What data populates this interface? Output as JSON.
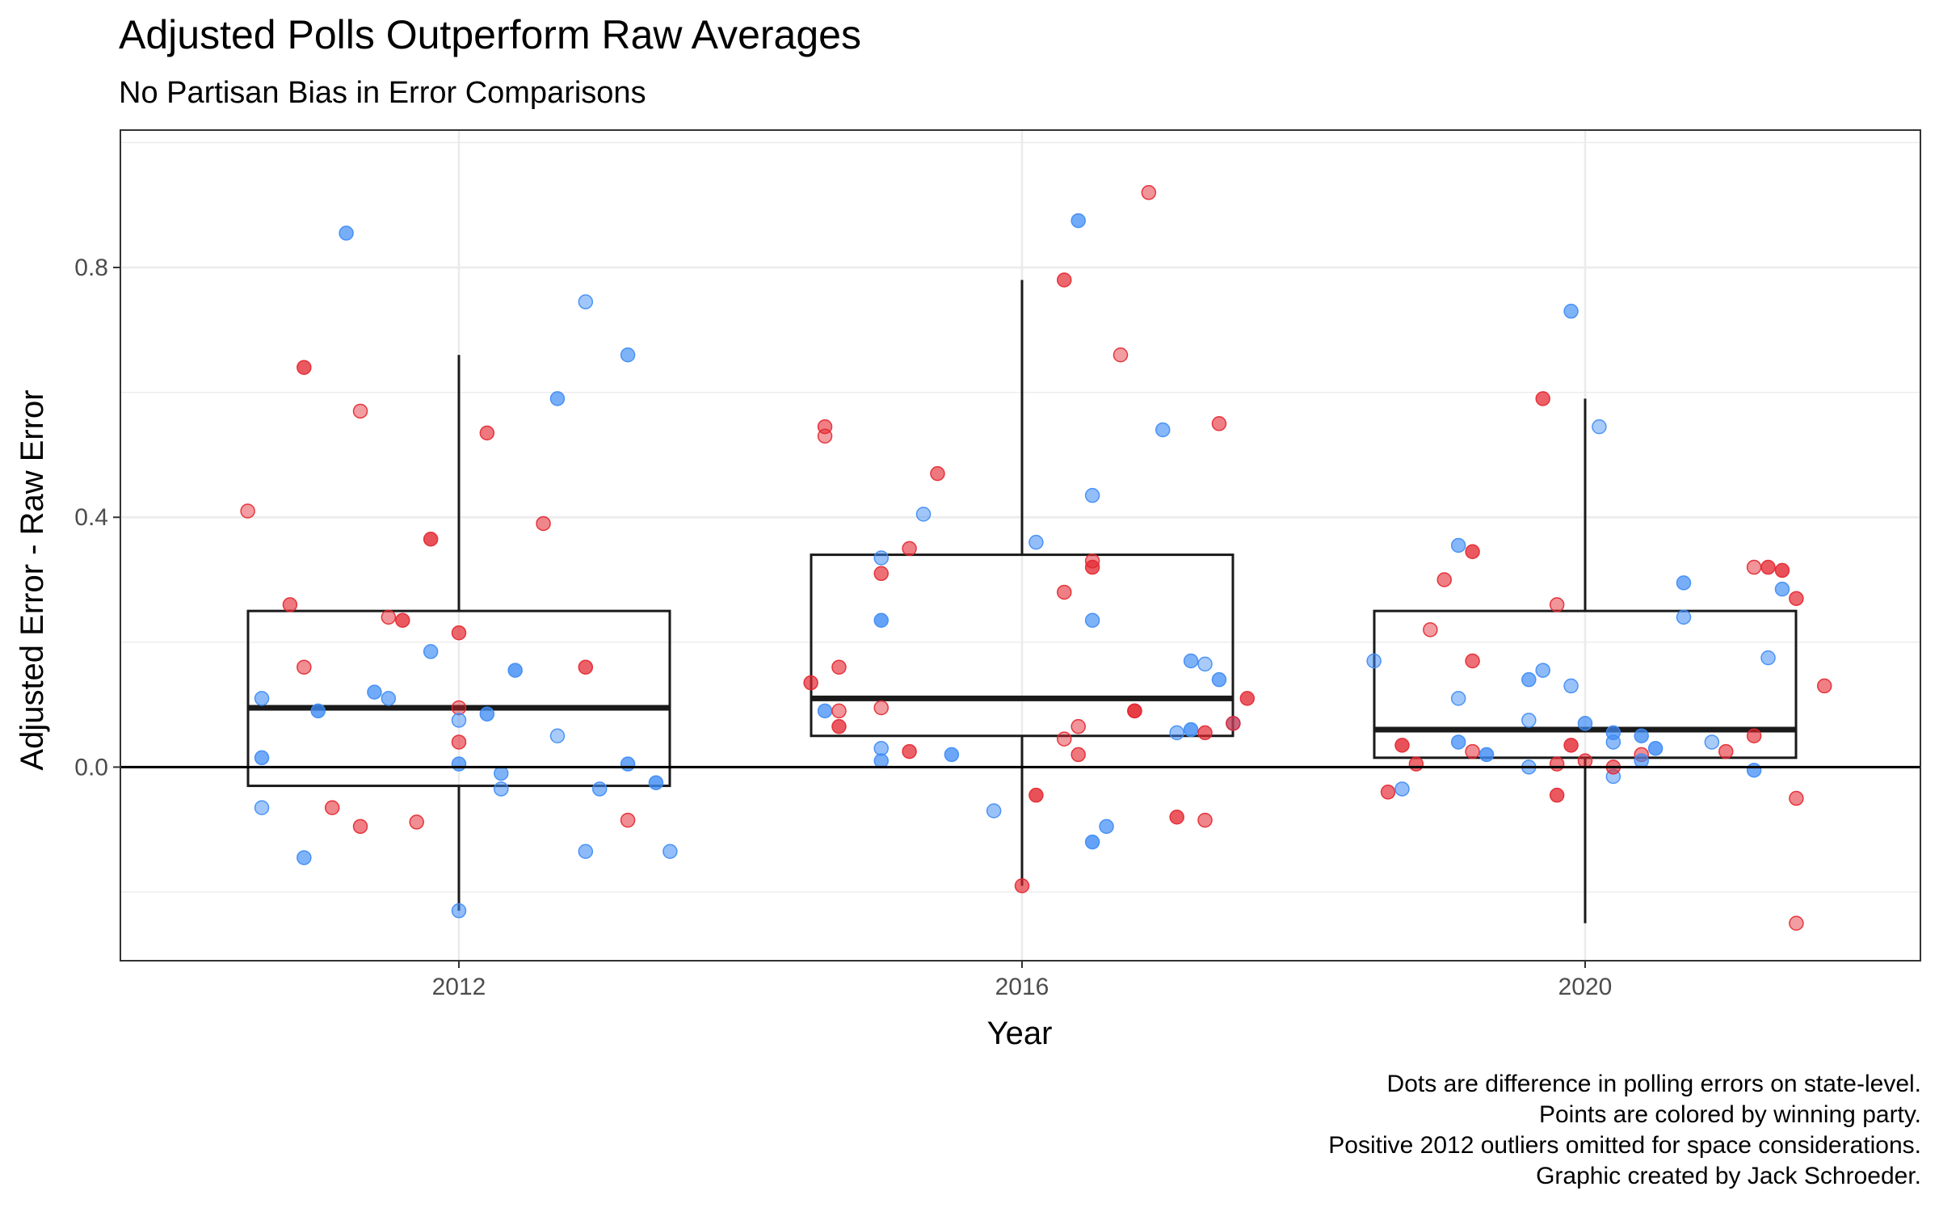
{
  "chart_data": {
    "type": "boxplot",
    "title": "Adjusted Polls Outperform Raw Averages",
    "subtitle": "No Partisan Bias in Error Comparisons",
    "xlabel": "Year",
    "ylabel": "Adjusted Error - Raw Error",
    "categories": [
      "2012",
      "2016",
      "2020"
    ],
    "x_ticks": [
      "2012",
      "2016",
      "2020"
    ],
    "y_ticks": [
      0.0,
      0.4,
      0.8
    ],
    "y_tick_labels": [
      "0.0",
      "0.4",
      "0.8"
    ],
    "ylim": [
      -0.31,
      1.02
    ],
    "grid": true,
    "reference_line_y": 0,
    "colors": {
      "dem": "#3d8bf5",
      "rep": "#e3262f",
      "box": "#1a1a1a",
      "reference": "#000000",
      "grid": "#ebebeb"
    },
    "boxes": [
      {
        "category": "2012",
        "lower_whisker": -0.23,
        "q1": -0.03,
        "median": 0.095,
        "q3": 0.25,
        "upper_whisker": 0.66
      },
      {
        "category": "2016",
        "lower_whisker": -0.19,
        "q1": 0.05,
        "median": 0.11,
        "q3": 0.34,
        "upper_whisker": 0.78
      },
      {
        "category": "2020",
        "lower_whisker": -0.25,
        "q1": 0.015,
        "median": 0.06,
        "q3": 0.25,
        "upper_whisker": 0.59
      }
    ],
    "points": [
      {
        "x": 2010.5,
        "y": 0.41,
        "party": "rep"
      },
      {
        "x": 2010.6,
        "y": 0.11,
        "party": "dem"
      },
      {
        "x": 2010.6,
        "y": 0.015,
        "party": "dem"
      },
      {
        "x": 2010.6,
        "y": -0.065,
        "party": "dem"
      },
      {
        "x": 2010.8,
        "y": 0.26,
        "party": "rep"
      },
      {
        "x": 2010.9,
        "y": 0.64,
        "party": "rep"
      },
      {
        "x": 2010.9,
        "y": 0.16,
        "party": "rep"
      },
      {
        "x": 2010.9,
        "y": -0.145,
        "party": "dem"
      },
      {
        "x": 2011.0,
        "y": 0.09,
        "party": "dem"
      },
      {
        "x": 2011.1,
        "y": -0.065,
        "party": "rep"
      },
      {
        "x": 2011.2,
        "y": 0.855,
        "party": "dem"
      },
      {
        "x": 2011.3,
        "y": 0.57,
        "party": "rep"
      },
      {
        "x": 2011.3,
        "y": -0.095,
        "party": "rep"
      },
      {
        "x": 2011.4,
        "y": 0.12,
        "party": "dem"
      },
      {
        "x": 2011.5,
        "y": 0.24,
        "party": "rep"
      },
      {
        "x": 2011.5,
        "y": 0.11,
        "party": "dem"
      },
      {
        "x": 2011.6,
        "y": 0.235,
        "party": "rep"
      },
      {
        "x": 2011.7,
        "y": -0.088,
        "party": "rep"
      },
      {
        "x": 2011.8,
        "y": 0.185,
        "party": "dem"
      },
      {
        "x": 2011.8,
        "y": 0.365,
        "party": "rep"
      },
      {
        "x": 2012.0,
        "y": -0.23,
        "party": "dem"
      },
      {
        "x": 2012.0,
        "y": 0.215,
        "party": "rep"
      },
      {
        "x": 2012.0,
        "y": 0.095,
        "party": "rep"
      },
      {
        "x": 2012.0,
        "y": 0.04,
        "party": "rep"
      },
      {
        "x": 2012.0,
        "y": 0.005,
        "party": "dem"
      },
      {
        "x": 2012.0,
        "y": 0.075,
        "party": "dem"
      },
      {
        "x": 2012.2,
        "y": 0.535,
        "party": "rep"
      },
      {
        "x": 2012.2,
        "y": 0.085,
        "party": "dem"
      },
      {
        "x": 2012.3,
        "y": -0.035,
        "party": "dem"
      },
      {
        "x": 2012.3,
        "y": -0.01,
        "party": "dem"
      },
      {
        "x": 2012.4,
        "y": 0.155,
        "party": "dem"
      },
      {
        "x": 2012.6,
        "y": 0.39,
        "party": "rep"
      },
      {
        "x": 2012.7,
        "y": 0.59,
        "party": "dem"
      },
      {
        "x": 2012.7,
        "y": 0.05,
        "party": "dem"
      },
      {
        "x": 2012.9,
        "y": -0.135,
        "party": "dem"
      },
      {
        "x": 2012.9,
        "y": 0.16,
        "party": "rep"
      },
      {
        "x": 2012.9,
        "y": 0.745,
        "party": "dem"
      },
      {
        "x": 2013.0,
        "y": -0.035,
        "party": "dem"
      },
      {
        "x": 2013.2,
        "y": 0.005,
        "party": "dem"
      },
      {
        "x": 2013.2,
        "y": -0.085,
        "party": "rep"
      },
      {
        "x": 2013.2,
        "y": 0.66,
        "party": "dem"
      },
      {
        "x": 2013.4,
        "y": -0.025,
        "party": "dem"
      },
      {
        "x": 2013.5,
        "y": -0.135,
        "party": "dem"
      },
      {
        "x": 2014.5,
        "y": 0.135,
        "party": "rep"
      },
      {
        "x": 2014.6,
        "y": 0.53,
        "party": "rep"
      },
      {
        "x": 2014.6,
        "y": 0.545,
        "party": "rep"
      },
      {
        "x": 2014.6,
        "y": 0.09,
        "party": "dem"
      },
      {
        "x": 2014.7,
        "y": 0.09,
        "party": "rep"
      },
      {
        "x": 2014.7,
        "y": 0.16,
        "party": "rep"
      },
      {
        "x": 2014.7,
        "y": 0.065,
        "party": "rep"
      },
      {
        "x": 2015.0,
        "y": 0.335,
        "party": "dem"
      },
      {
        "x": 2015.0,
        "y": 0.31,
        "party": "rep"
      },
      {
        "x": 2015.0,
        "y": 0.235,
        "party": "dem"
      },
      {
        "x": 2015.0,
        "y": 0.03,
        "party": "dem"
      },
      {
        "x": 2015.0,
        "y": 0.01,
        "party": "dem"
      },
      {
        "x": 2015.0,
        "y": 0.095,
        "party": "rep"
      },
      {
        "x": 2015.2,
        "y": 0.35,
        "party": "rep"
      },
      {
        "x": 2015.2,
        "y": 0.025,
        "party": "rep"
      },
      {
        "x": 2015.3,
        "y": 0.405,
        "party": "dem"
      },
      {
        "x": 2015.4,
        "y": 0.47,
        "party": "rep"
      },
      {
        "x": 2015.5,
        "y": 0.02,
        "party": "dem"
      },
      {
        "x": 2015.8,
        "y": -0.07,
        "party": "dem"
      },
      {
        "x": 2016.0,
        "y": -0.19,
        "party": "rep"
      },
      {
        "x": 2016.1,
        "y": -0.045,
        "party": "rep"
      },
      {
        "x": 2016.1,
        "y": 0.36,
        "party": "dem"
      },
      {
        "x": 2016.3,
        "y": 0.78,
        "party": "rep"
      },
      {
        "x": 2016.3,
        "y": 0.045,
        "party": "rep"
      },
      {
        "x": 2016.3,
        "y": 0.28,
        "party": "rep"
      },
      {
        "x": 2016.4,
        "y": 0.875,
        "party": "dem"
      },
      {
        "x": 2016.4,
        "y": 0.065,
        "party": "rep"
      },
      {
        "x": 2016.4,
        "y": 0.02,
        "party": "rep"
      },
      {
        "x": 2016.5,
        "y": 0.32,
        "party": "rep"
      },
      {
        "x": 2016.5,
        "y": 0.33,
        "party": "rep"
      },
      {
        "x": 2016.5,
        "y": 0.235,
        "party": "dem"
      },
      {
        "x": 2016.5,
        "y": -0.12,
        "party": "dem"
      },
      {
        "x": 2016.5,
        "y": 0.435,
        "party": "dem"
      },
      {
        "x": 2016.6,
        "y": -0.095,
        "party": "dem"
      },
      {
        "x": 2016.7,
        "y": 0.66,
        "party": "rep"
      },
      {
        "x": 2016.8,
        "y": 0.09,
        "party": "rep"
      },
      {
        "x": 2016.8,
        "y": 0.09,
        "party": "rep"
      },
      {
        "x": 2016.9,
        "y": 0.92,
        "party": "rep"
      },
      {
        "x": 2017.0,
        "y": 0.54,
        "party": "dem"
      },
      {
        "x": 2017.1,
        "y": -0.08,
        "party": "rep"
      },
      {
        "x": 2017.1,
        "y": 0.055,
        "party": "dem"
      },
      {
        "x": 2017.2,
        "y": 0.17,
        "party": "dem"
      },
      {
        "x": 2017.2,
        "y": 0.06,
        "party": "dem"
      },
      {
        "x": 2017.3,
        "y": -0.085,
        "party": "rep"
      },
      {
        "x": 2017.3,
        "y": 0.055,
        "party": "rep"
      },
      {
        "x": 2017.3,
        "y": 0.165,
        "party": "dem"
      },
      {
        "x": 2017.4,
        "y": 0.55,
        "party": "rep"
      },
      {
        "x": 2017.4,
        "y": 0.14,
        "party": "dem"
      },
      {
        "x": 2017.5,
        "y": 0.07,
        "party": "dem"
      },
      {
        "x": 2017.5,
        "y": 0.07,
        "party": "rep"
      },
      {
        "x": 2017.6,
        "y": 0.11,
        "party": "rep"
      },
      {
        "x": 2018.5,
        "y": 0.17,
        "party": "dem"
      },
      {
        "x": 2018.6,
        "y": -0.04,
        "party": "rep"
      },
      {
        "x": 2018.7,
        "y": 0.035,
        "party": "rep"
      },
      {
        "x": 2018.7,
        "y": -0.035,
        "party": "dem"
      },
      {
        "x": 2018.8,
        "y": 0.005,
        "party": "rep"
      },
      {
        "x": 2018.9,
        "y": 0.22,
        "party": "rep"
      },
      {
        "x": 2019.0,
        "y": 0.3,
        "party": "rep"
      },
      {
        "x": 2019.1,
        "y": 0.04,
        "party": "dem"
      },
      {
        "x": 2019.1,
        "y": 0.11,
        "party": "dem"
      },
      {
        "x": 2019.1,
        "y": 0.355,
        "party": "dem"
      },
      {
        "x": 2019.2,
        "y": 0.345,
        "party": "rep"
      },
      {
        "x": 2019.2,
        "y": 0.025,
        "party": "rep"
      },
      {
        "x": 2019.2,
        "y": 0.17,
        "party": "rep"
      },
      {
        "x": 2019.3,
        "y": 0.02,
        "party": "dem"
      },
      {
        "x": 2019.6,
        "y": 0.0,
        "party": "dem"
      },
      {
        "x": 2019.6,
        "y": 0.14,
        "party": "dem"
      },
      {
        "x": 2019.6,
        "y": 0.075,
        "party": "dem"
      },
      {
        "x": 2019.7,
        "y": 0.155,
        "party": "dem"
      },
      {
        "x": 2019.7,
        "y": 0.59,
        "party": "rep"
      },
      {
        "x": 2019.8,
        "y": 0.26,
        "party": "rep"
      },
      {
        "x": 2019.8,
        "y": 0.005,
        "party": "rep"
      },
      {
        "x": 2019.8,
        "y": -0.045,
        "party": "rep"
      },
      {
        "x": 2019.9,
        "y": 0.13,
        "party": "dem"
      },
      {
        "x": 2019.9,
        "y": 0.73,
        "party": "dem"
      },
      {
        "x": 2019.9,
        "y": 0.035,
        "party": "rep"
      },
      {
        "x": 2020.0,
        "y": 0.01,
        "party": "rep"
      },
      {
        "x": 2020.0,
        "y": 0.07,
        "party": "dem"
      },
      {
        "x": 2020.1,
        "y": 0.545,
        "party": "dem"
      },
      {
        "x": 2020.2,
        "y": 0.04,
        "party": "dem"
      },
      {
        "x": 2020.2,
        "y": 0.055,
        "party": "dem"
      },
      {
        "x": 2020.2,
        "y": -0.015,
        "party": "dem"
      },
      {
        "x": 2020.2,
        "y": 0.0,
        "party": "rep"
      },
      {
        "x": 2020.4,
        "y": 0.05,
        "party": "dem"
      },
      {
        "x": 2020.4,
        "y": 0.02,
        "party": "rep"
      },
      {
        "x": 2020.4,
        "y": 0.01,
        "party": "dem"
      },
      {
        "x": 2020.5,
        "y": 0.03,
        "party": "dem"
      },
      {
        "x": 2020.7,
        "y": 0.24,
        "party": "dem"
      },
      {
        "x": 2020.7,
        "y": 0.295,
        "party": "dem"
      },
      {
        "x": 2020.9,
        "y": 0.04,
        "party": "dem"
      },
      {
        "x": 2021.0,
        "y": 0.025,
        "party": "rep"
      },
      {
        "x": 2021.2,
        "y": -0.005,
        "party": "dem"
      },
      {
        "x": 2021.2,
        "y": 0.32,
        "party": "rep"
      },
      {
        "x": 2021.2,
        "y": 0.05,
        "party": "rep"
      },
      {
        "x": 2021.3,
        "y": 0.32,
        "party": "rep"
      },
      {
        "x": 2021.3,
        "y": 0.175,
        "party": "dem"
      },
      {
        "x": 2021.4,
        "y": 0.285,
        "party": "dem"
      },
      {
        "x": 2021.4,
        "y": 0.315,
        "party": "rep"
      },
      {
        "x": 2021.5,
        "y": -0.05,
        "party": "rep"
      },
      {
        "x": 2021.5,
        "y": 0.27,
        "party": "rep"
      },
      {
        "x": 2021.5,
        "y": -0.25,
        "party": "rep"
      },
      {
        "x": 2021.7,
        "y": 0.13,
        "party": "rep"
      }
    ],
    "caption": [
      "Dots are difference in polling errors on state-level.",
      "Points are colored by winning party.",
      "Positive 2012 outliers omitted for space considerations.",
      "Graphic created by Jack Schroeder."
    ]
  }
}
